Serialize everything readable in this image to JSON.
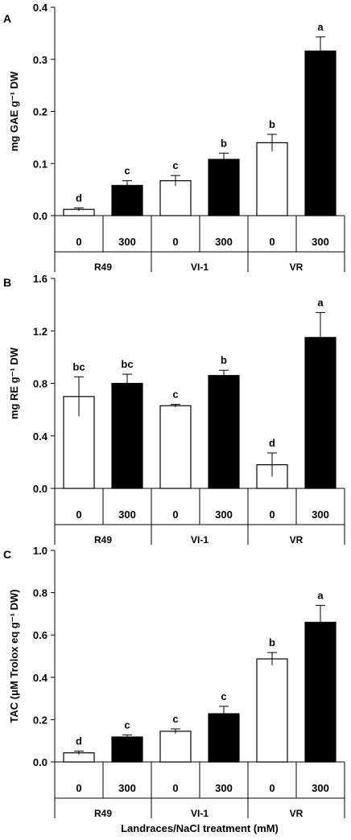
{
  "chart_data": [
    {
      "panel": "A",
      "type": "bar",
      "ylabel": "mg GAE g⁻¹ DW",
      "ylim": [
        0,
        0.4
      ],
      "yticks": [
        "0.0",
        "0.1",
        "0.2",
        "0.3",
        "0.4"
      ],
      "groups": [
        "R49",
        "VI-1",
        "VR"
      ],
      "categories": [
        "0",
        "300",
        "0",
        "300",
        "0",
        "300"
      ],
      "values": [
        0.012,
        0.058,
        0.067,
        0.108,
        0.14,
        0.316
      ],
      "errors": [
        0.003,
        0.009,
        0.01,
        0.012,
        0.016,
        0.027
      ],
      "letters": [
        "d",
        "c",
        "c",
        "b",
        "b",
        "a"
      ],
      "fills": [
        "#ffffff",
        "#000000",
        "#ffffff",
        "#000000",
        "#ffffff",
        "#000000"
      ]
    },
    {
      "panel": "B",
      "type": "bar",
      "ylabel": "mg RE g⁻¹ DW",
      "ylim": [
        0,
        1.6
      ],
      "yticks": [
        "0.0",
        "0.4",
        "0.8",
        "1.2",
        "1.6"
      ],
      "groups": [
        "R49",
        "VI-1",
        "VR"
      ],
      "categories": [
        "0",
        "300",
        "0",
        "300",
        "0",
        "300"
      ],
      "values": [
        0.7,
        0.8,
        0.63,
        0.86,
        0.18,
        1.15
      ],
      "errors": [
        0.15,
        0.07,
        0.01,
        0.04,
        0.09,
        0.19
      ],
      "letters": [
        "bc",
        "bc",
        "c",
        "b",
        "d",
        "a"
      ],
      "fills": [
        "#ffffff",
        "#000000",
        "#ffffff",
        "#000000",
        "#ffffff",
        "#000000"
      ]
    },
    {
      "panel": "C",
      "type": "bar",
      "ylabel": "TAC (μM Trolox eq g⁻¹ DW)",
      "ylim": [
        0,
        1.0
      ],
      "yticks": [
        "0.0",
        "0.2",
        "0.4",
        "0.6",
        "0.8",
        "1.0"
      ],
      "groups": [
        "R49",
        "VI-1",
        "VR"
      ],
      "categories": [
        "0",
        "300",
        "0",
        "300",
        "0",
        "300"
      ],
      "values": [
        0.043,
        0.118,
        0.145,
        0.228,
        0.487,
        0.66
      ],
      "errors": [
        0.008,
        0.01,
        0.011,
        0.035,
        0.03,
        0.08
      ],
      "letters": [
        "d",
        "c",
        "c",
        "c",
        "b",
        "a"
      ],
      "fills": [
        "#ffffff",
        "#000000",
        "#ffffff",
        "#000000",
        "#ffffff",
        "#000000"
      ],
      "xlabel": "Landraces/NaCl treatment (mM)"
    }
  ]
}
